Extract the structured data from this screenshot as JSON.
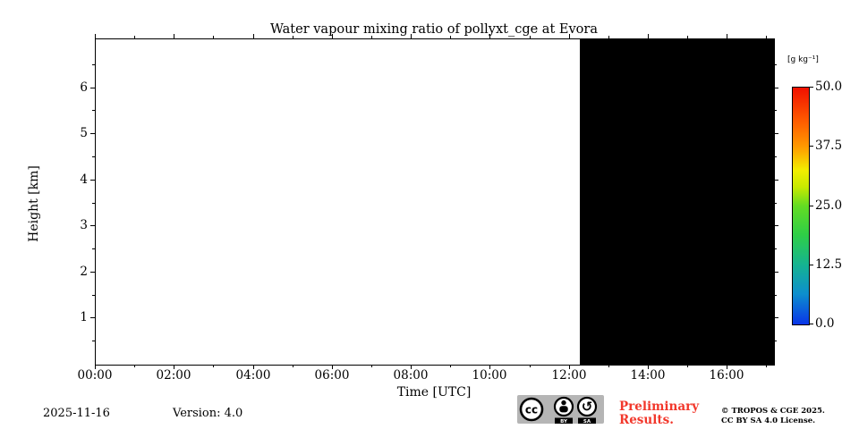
{
  "title": "Water vapour mixing ratio of pollyxt_cge at Evora",
  "chart_data": {
    "type": "heatmap",
    "title": "Water vapour mixing ratio of pollyxt_cge at Evora",
    "xlabel": "Time [UTC]",
    "ylabel": "Height [km]",
    "x_range_hours": [
      0,
      17.17
    ],
    "x_major_ticks": [
      {
        "hour": 0,
        "label": "00:00"
      },
      {
        "hour": 2,
        "label": "02:00"
      },
      {
        "hour": 4,
        "label": "04:00"
      },
      {
        "hour": 6,
        "label": "06:00"
      },
      {
        "hour": 8,
        "label": "08:00"
      },
      {
        "hour": 10,
        "label": "10:00"
      },
      {
        "hour": 12,
        "label": "12:00"
      },
      {
        "hour": 14,
        "label": "14:00"
      },
      {
        "hour": 16,
        "label": "16:00"
      }
    ],
    "x_minor_tick_hours": [
      1,
      3,
      5,
      7,
      9,
      11,
      13,
      15,
      17
    ],
    "y_range_km": [
      0,
      7.06
    ],
    "y_major_ticks": [
      1,
      2,
      3,
      4,
      5,
      6
    ],
    "y_minor_tick_km": [
      0.5,
      1.5,
      2.5,
      3.5,
      4.5,
      5.5,
      6.5
    ],
    "grid": false,
    "legend": null,
    "regions": [
      {
        "name": "blank-white",
        "x_start_hours": 0,
        "x_end_hours": 12.25,
        "fill": "#ffffff"
      },
      {
        "name": "no-data-black",
        "x_start_hours": 12.25,
        "x_end_hours": 17.17,
        "fill": "#000000"
      }
    ],
    "colorbar": {
      "label": "[g kg⁻¹]",
      "min": 0,
      "max": 50,
      "tick_values": [
        50.0,
        37.5,
        25.0,
        12.5,
        0.0
      ],
      "tick_labels": [
        "50.0",
        "37.5",
        "25.0",
        "12.5",
        "0.0"
      ],
      "gradient_bottom_to_top": [
        {
          "pct": 0,
          "color": "#0a35e8"
        },
        {
          "pct": 13,
          "color": "#0d8fcd"
        },
        {
          "pct": 25,
          "color": "#15b392"
        },
        {
          "pct": 38,
          "color": "#2fcf46"
        },
        {
          "pct": 50,
          "color": "#63dc23"
        },
        {
          "pct": 58,
          "color": "#c7ea00"
        },
        {
          "pct": 65,
          "color": "#f2ef00"
        },
        {
          "pct": 75,
          "color": "#ff9a00"
        },
        {
          "pct": 85,
          "color": "#ff6000"
        },
        {
          "pct": 100,
          "color": "#f01000"
        }
      ]
    }
  },
  "footer": {
    "date": "2025-11-16",
    "version": "Version: 4.0",
    "preliminary_line1": "Preliminary",
    "preliminary_line2": "Results.",
    "preliminary_color": "#f2372b",
    "copyright_line1": "© TROPOS & CGE 2025.",
    "copyright_line2": "CC BY SA 4.0 License.",
    "badge": {
      "cc": "cc",
      "by": "BY",
      "sa": "SA"
    }
  }
}
